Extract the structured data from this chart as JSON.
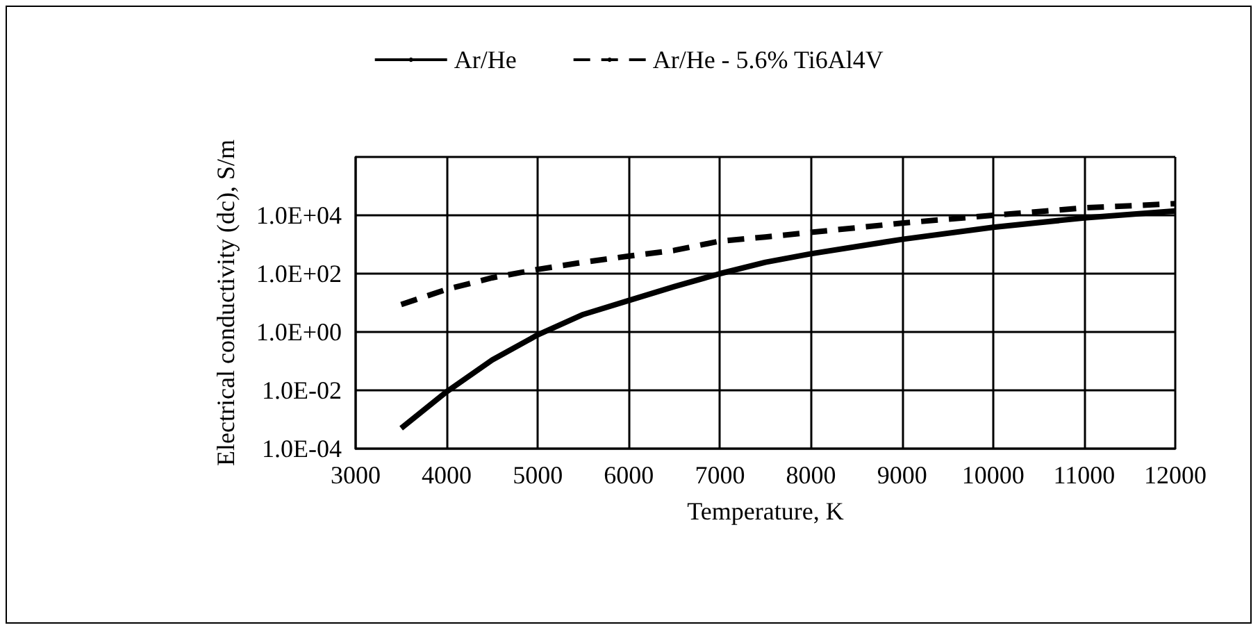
{
  "chart_data": {
    "type": "line",
    "xlabel": "Temperature, K",
    "ylabel": "Electrical conductivity (dc), S/m",
    "x": [
      3500,
      4000,
      4500,
      5000,
      5500,
      6000,
      6500,
      7000,
      7500,
      8000,
      9000,
      10000,
      11000,
      12000
    ],
    "series": [
      {
        "name": "Ar/He",
        "color": "#000000",
        "line_style": "solid",
        "values": [
          0.0005,
          0.009,
          0.11,
          0.8,
          4,
          12,
          36,
          100,
          245,
          480,
          1500,
          3900,
          8100,
          14000
        ]
      },
      {
        "name": "Ar/He - 5.6% Ti6Al4V",
        "color": "#000000",
        "line_style": "dashed",
        "values": [
          8.7,
          29,
          72,
          140,
          245,
          400,
          630,
          1300,
          1800,
          2600,
          5400,
          10000,
          18000,
          25000
        ]
      }
    ],
    "log": "y",
    "xlim": [
      3000,
      12000
    ],
    "xticks": [
      3000,
      4000,
      5000,
      6000,
      7000,
      8000,
      9000,
      10000,
      11000,
      12000
    ],
    "ylim": [
      0.0001,
      1000000
    ],
    "yticks": [
      {
        "value": 0.0001,
        "label": "1.0E-04"
      },
      {
        "value": 0.01,
        "label": "1.0E-02"
      },
      {
        "value": 1,
        "label": "1.0E+00"
      },
      {
        "value": 100,
        "label": "1.0E+02"
      },
      {
        "value": 10000,
        "label": "1.0E+04"
      },
      {
        "value": 1000000,
        "label": null
      }
    ],
    "grid": true,
    "legend": "top",
    "marker": "none"
  }
}
